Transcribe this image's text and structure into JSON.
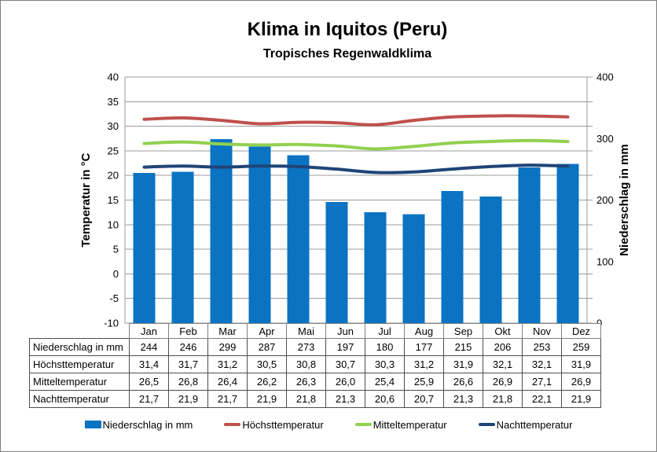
{
  "chart_data": {
    "type": "bar+line",
    "title": "Klima in Iquitos (Peru)",
    "subtitle": "Tropisches Regenwaldklima",
    "categories": [
      "Jan",
      "Feb",
      "Mar",
      "Apr",
      "Mai",
      "Jun",
      "Jul",
      "Aug",
      "Sep",
      "Okt",
      "Nov",
      "Dez"
    ],
    "series": [
      {
        "name": "Niederschlag in mm",
        "type": "bar",
        "axis": "right",
        "color": "#0a73c2",
        "values": [
          244,
          246,
          299,
          287,
          273,
          197,
          180,
          177,
          215,
          206,
          253,
          259
        ]
      },
      {
        "name": "Höchsttemperatur",
        "type": "line",
        "axis": "left",
        "color": "#c0504d",
        "values": [
          31.4,
          31.7,
          31.2,
          30.5,
          30.8,
          30.7,
          30.3,
          31.2,
          31.9,
          32.1,
          32.1,
          31.9
        ]
      },
      {
        "name": "Mitteltemperatur",
        "type": "line",
        "axis": "left",
        "color": "#92d050",
        "values": [
          26.5,
          26.8,
          26.4,
          26.2,
          26.3,
          26.0,
          25.4,
          25.9,
          26.6,
          26.9,
          27.1,
          26.9
        ]
      },
      {
        "name": "Nachttemperatur",
        "type": "line",
        "axis": "left",
        "color": "#1f4477",
        "values": [
          21.7,
          21.9,
          21.7,
          21.9,
          21.8,
          21.3,
          20.6,
          20.7,
          21.3,
          21.8,
          22.1,
          21.9
        ]
      }
    ],
    "left_axis": {
      "title": "Temperatur in °C",
      "min": -10,
      "max": 40,
      "tick_step": 5
    },
    "right_axis": {
      "title": "Niederschlag in mm",
      "min": 0,
      "max": 400,
      "tick_step": 40,
      "label_step": 100
    },
    "grid": true,
    "legend_position": "bottom",
    "colors": {
      "grid": "#9b9b9b",
      "axis": "#9b9b9b",
      "table_border": "#4d4d4d"
    }
  },
  "table": {
    "rows": [
      {
        "label": "Niederschlag in mm",
        "values": [
          "244",
          "246",
          "299",
          "287",
          "273",
          "197",
          "180",
          "177",
          "215",
          "206",
          "253",
          "259"
        ]
      },
      {
        "label": "Höchsttemperatur",
        "values": [
          "31,4",
          "31,7",
          "31,2",
          "30,5",
          "30,8",
          "30,7",
          "30,3",
          "31,2",
          "31,9",
          "32,1",
          "32,1",
          "31,9"
        ]
      },
      {
        "label": "Mitteltemperatur",
        "values": [
          "26,5",
          "26,8",
          "26,4",
          "26,2",
          "26,3",
          "26,0",
          "25,4",
          "25,9",
          "26,6",
          "26,9",
          "27,1",
          "26,9"
        ]
      },
      {
        "label": "Nachttemperatur",
        "values": [
          "21,7",
          "21,9",
          "21,7",
          "21,9",
          "21,8",
          "21,3",
          "20,6",
          "20,7",
          "21,3",
          "21,8",
          "22,1",
          "21,9"
        ]
      }
    ]
  },
  "legend": {
    "items": [
      {
        "label": "Niederschlag in mm",
        "shape": "bar",
        "color": "#0a73c2"
      },
      {
        "label": "Höchsttemperatur",
        "shape": "line",
        "color": "#c0504d"
      },
      {
        "label": "Mitteltemperatur",
        "shape": "line",
        "color": "#92d050"
      },
      {
        "label": "Nachttemperatur",
        "shape": "line",
        "color": "#1f4477"
      }
    ]
  }
}
